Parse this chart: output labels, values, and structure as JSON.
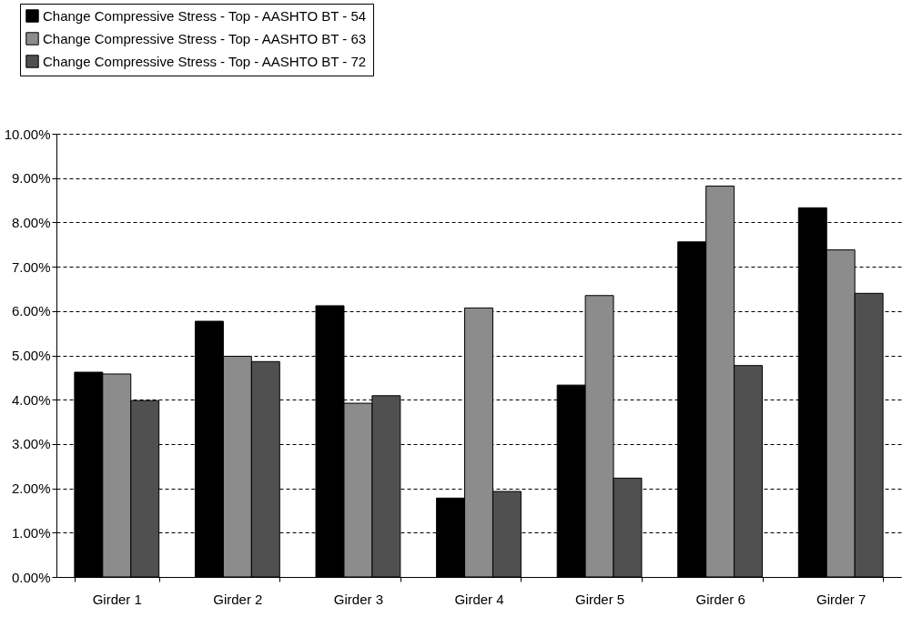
{
  "chart_data": {
    "type": "bar",
    "categories": [
      "Girder 1",
      "Girder 2",
      "Girder 3",
      "Girder 4",
      "Girder 5",
      "Girder 6",
      "Girder 7"
    ],
    "series": [
      {
        "name": "Change Compressive Stress - Top - AASHTO BT - 54",
        "color": "#000000",
        "values": [
          4.62,
          5.77,
          6.12,
          1.78,
          4.33,
          7.56,
          8.33
        ]
      },
      {
        "name": "Change Compressive Stress - Top - AASHTO BT - 63",
        "color": "#8c8c8c",
        "values": [
          4.58,
          4.98,
          3.92,
          6.07,
          6.35,
          8.82,
          7.38
        ]
      },
      {
        "name": "Change Compressive Stress - Top - AASHTO BT - 72",
        "color": "#505050",
        "values": [
          3.98,
          4.86,
          4.09,
          1.93,
          2.23,
          4.77,
          6.4
        ]
      }
    ],
    "ylim": [
      0,
      10
    ],
    "yticks": [
      {
        "value": 0,
        "label": "0.00%"
      },
      {
        "value": 1,
        "label": "1.00%"
      },
      {
        "value": 2,
        "label": "2.00%"
      },
      {
        "value": 3,
        "label": "3.00%"
      },
      {
        "value": 4,
        "label": "4.00%"
      },
      {
        "value": 5,
        "label": "5.00%"
      },
      {
        "value": 6,
        "label": "6.00%"
      },
      {
        "value": 7,
        "label": "7.00%"
      },
      {
        "value": 8,
        "label": "8.00%"
      },
      {
        "value": 9,
        "label": "9.00%"
      },
      {
        "value": 10,
        "label": "10.00%"
      }
    ],
    "grid": "y",
    "legend": "top left"
  }
}
